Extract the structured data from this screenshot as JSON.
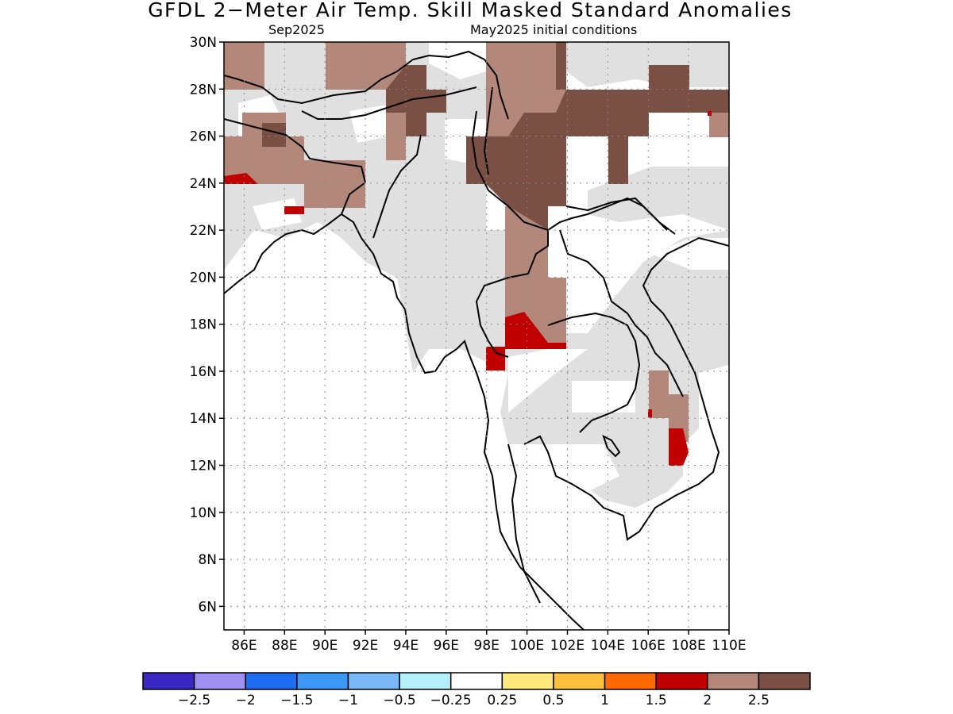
{
  "title": "GFDL 2−Meter Air Temp. Skill Masked Standard Anomalies",
  "subtitle_left": "Sep2025",
  "subtitle_right": "May2025 initial conditions",
  "map": {
    "lat_labels": [
      "30N",
      "28N",
      "26N",
      "24N",
      "22N",
      "20N",
      "18N",
      "16N",
      "14N",
      "12N",
      "10N",
      "8N",
      "6N"
    ],
    "lon_labels": [
      "86E",
      "88E",
      "90E",
      "92E",
      "94E",
      "96E",
      "98E",
      "100E",
      "102E",
      "104E",
      "106E",
      "108E",
      "110E"
    ],
    "lat_range": [
      5,
      30
    ],
    "lon_range": [
      85,
      110
    ],
    "grid": "dotted",
    "fill_colors": {
      "masked": "#e0e0e0",
      "anom_2_to_2_5": "#b4877b",
      "anom_gt_2_5": "#7b5044",
      "anom_1_5_to_2": "#c00000"
    }
  },
  "colorbar": {
    "colors": [
      "#3b28c4",
      "#9f8ff2",
      "#1e6cf0",
      "#3c97f5",
      "#7ab8f8",
      "#b4f0fa",
      "#ffffff",
      "#ffe87c",
      "#ffc03c",
      "#ff6a00",
      "#c00000",
      "#b4877b",
      "#7b5044"
    ],
    "labels": [
      "−2.5",
      "−2",
      "−1.5",
      "−1",
      "−0.5",
      "−0.25",
      "0.25",
      "0.5",
      "1",
      "1.5",
      "2",
      "2.5"
    ]
  }
}
